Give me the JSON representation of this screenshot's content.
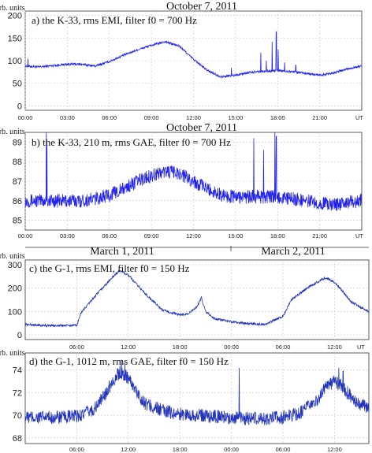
{
  "chart_data": [
    {
      "type": "line",
      "date_title": "October 7,  2011",
      "label": "a)  the K-33, rms EMI, filter  f0 = 700 Hz",
      "ylabel": "arb. units",
      "xunit": "UT",
      "ylim": [
        -10,
        210
      ],
      "yticks": [
        0,
        50,
        100,
        150,
        200
      ],
      "xlim": [
        0,
        24
      ],
      "xtick_positions": [
        0,
        3,
        6,
        9,
        12,
        15,
        18,
        21
      ],
      "xtick_labels": [
        "00:00",
        "03:00",
        "06:00",
        "09:00",
        "12:00",
        "15:00",
        "18:00",
        "21:00"
      ],
      "grid": true,
      "series_color": "#2222ee",
      "noise": 2.5,
      "series": [
        {
          "x": [
            0,
            1,
            2,
            3,
            4,
            5,
            6,
            7,
            8,
            9,
            10,
            11,
            12,
            13,
            14,
            15,
            16,
            17,
            18,
            19,
            20,
            21,
            22,
            23,
            24
          ],
          "y": [
            88,
            86,
            89,
            92,
            92,
            88,
            98,
            112,
            124,
            134,
            142,
            132,
            103,
            78,
            64,
            68,
            74,
            76,
            78,
            76,
            72,
            68,
            73,
            82,
            88
          ]
        }
      ],
      "spikes": [
        [
          0.2,
          104
        ],
        [
          14.7,
          84
        ],
        [
          16.8,
          118
        ],
        [
          17.2,
          100
        ],
        [
          17.6,
          142
        ],
        [
          17.9,
          164
        ],
        [
          18.05,
          125
        ],
        [
          18.5,
          96
        ],
        [
          19.3,
          90
        ]
      ]
    },
    {
      "type": "line",
      "date_title": "October 7, 2011",
      "label": "b)  the K-33, 210 m, rms GAE, filter  f0 = 700 Hz",
      "ylabel": "arb. units",
      "xunit": "UT",
      "ylim": [
        84.5,
        89.5
      ],
      "yticks": [
        85,
        86,
        87,
        88,
        89
      ],
      "xlim": [
        0,
        24
      ],
      "xtick_positions": [
        0,
        3,
        6,
        9,
        12,
        15,
        18,
        21
      ],
      "xtick_labels": [
        "00:00",
        "03:00",
        "06:00",
        "09:00",
        "12:00",
        "15:00",
        "18:00",
        "21:00"
      ],
      "grid": true,
      "series_color": "#2222ee",
      "noise": 0.35,
      "series": [
        {
          "x": [
            0,
            1,
            2,
            3,
            4,
            5,
            6,
            7,
            8,
            9,
            10,
            11,
            12,
            13,
            14,
            15,
            16,
            17,
            18,
            19,
            20,
            21,
            22,
            23,
            24
          ],
          "y": [
            86.0,
            86.0,
            86.0,
            86.0,
            86.0,
            86.1,
            86.3,
            86.6,
            87.0,
            87.3,
            87.5,
            87.4,
            87.0,
            86.6,
            86.3,
            86.2,
            86.2,
            86.2,
            86.2,
            86.1,
            86.0,
            85.9,
            85.8,
            85.9,
            86.0
          ]
        }
      ],
      "spikes": [
        [
          1.5,
          89.5
        ],
        [
          1.55,
          88.8
        ],
        [
          16.3,
          89.2
        ],
        [
          17.0,
          88.6
        ],
        [
          17.8,
          89.5
        ],
        [
          17.9,
          89.3
        ]
      ]
    },
    {
      "type": "line",
      "date_titles": [
        "March 1, 2011",
        "March 2, 2011"
      ],
      "label": "c) the G-1, rms EMI, filter f0 = 150 Hz",
      "ylabel": "arb. units",
      "xunit": "UT",
      "ylim": [
        -20,
        320
      ],
      "yticks": [
        0,
        100,
        200,
        300
      ],
      "xlim": [
        0,
        40
      ],
      "xtick_positions": [
        6,
        12,
        18,
        24,
        30,
        36
      ],
      "xtick_labels": [
        "06:00",
        "12:00",
        "18:00",
        "00:00",
        "06:00",
        "12:00"
      ],
      "grid": true,
      "series_color": "#2233bb",
      "noise": 5,
      "series": [
        {
          "x": [
            0,
            2,
            4,
            6,
            6.5,
            8,
            10,
            11,
            12,
            14,
            16,
            18,
            19,
            20,
            20.5,
            21,
            22,
            24,
            26,
            28,
            30,
            31,
            33,
            34,
            35,
            36,
            37,
            38,
            40
          ],
          "y": [
            45,
            40,
            40,
            40,
            95,
            160,
            240,
            275,
            255,
            175,
            105,
            85,
            90,
            120,
            160,
            100,
            70,
            55,
            48,
            45,
            80,
            150,
            205,
            225,
            245,
            225,
            185,
            140,
            100
          ]
        }
      ],
      "spikes": []
    },
    {
      "type": "line",
      "label": "d) the G-1, 1012 m, rms GAE, filter f0 = 150 Hz",
      "ylabel": "arb. units",
      "xunit": "UT",
      "ylim": [
        67.5,
        75.5
      ],
      "yticks": [
        68,
        70,
        72,
        74
      ],
      "xlim": [
        0,
        40
      ],
      "xtick_positions": [
        6,
        12,
        18,
        24,
        30,
        36
      ],
      "xtick_labels": [
        "06:00",
        "12:00",
        "18:00",
        "00:00",
        "06:00",
        "12:00"
      ],
      "grid": true,
      "series_color": "#2233bb",
      "noise": 0.6,
      "series": [
        {
          "x": [
            0,
            2,
            4,
            6,
            8,
            9,
            10,
            11,
            12,
            13,
            14,
            16,
            18,
            20,
            22,
            24,
            26,
            28,
            30,
            32,
            34,
            35,
            36,
            37,
            38,
            40
          ],
          "y": [
            69.8,
            69.8,
            69.8,
            69.9,
            70.5,
            71.5,
            72.8,
            73.8,
            73.3,
            72.0,
            71.0,
            70.4,
            70.1,
            70.0,
            69.9,
            69.8,
            69.7,
            69.7,
            69.8,
            70.2,
            71.3,
            72.5,
            73.0,
            72.5,
            71.5,
            70.5
          ]
        }
      ],
      "spikes": [
        [
          11.2,
          74.9
        ],
        [
          11.6,
          74.6
        ],
        [
          24.9,
          74.2
        ],
        [
          36.5,
          74.2
        ],
        [
          37.0,
          73.9
        ]
      ]
    }
  ]
}
